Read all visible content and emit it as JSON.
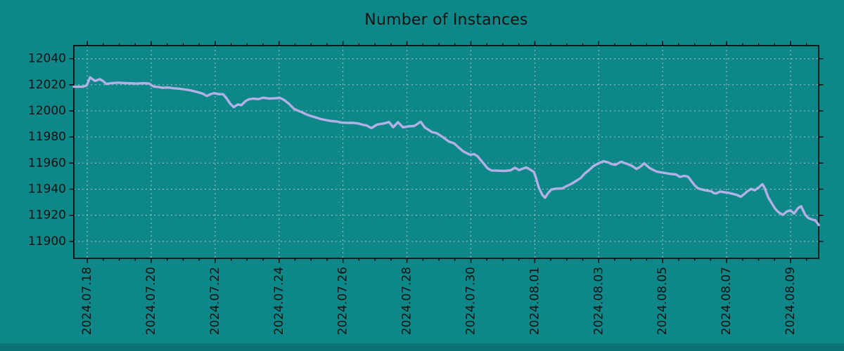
{
  "chart": {
    "title": "Number of Instances",
    "colors": {
      "background": "#0e8789",
      "bottom_strip": "#0b7173",
      "line": "#b3b0e6",
      "grid": "#cccccc",
      "text": "#111111",
      "frame": "#000000"
    }
  },
  "chart_data": {
    "type": "line",
    "title": "Number of Instances",
    "series_name": "instances",
    "x_unit": "days since 2024-07-18 00:00",
    "xlim_days": [
      -0.42,
      22.88
    ],
    "ylim": [
      11887,
      12050
    ],
    "grid": true,
    "legend": "none",
    "x_tick_days": [
      0,
      2,
      4,
      6,
      8,
      10,
      12,
      14,
      16,
      18,
      20,
      22
    ],
    "x_tick_labels": [
      "2024.07.18",
      "2024.07.20",
      "2024.07.22",
      "2024.07.24",
      "2024.07.26",
      "2024.07.28",
      "2024.07.30",
      "2024.08.01",
      "2024.08.03",
      "2024.08.05",
      "2024.08.07",
      "2024.08.09"
    ],
    "x_minor_tick_interval_days": 0.5,
    "y_ticks": [
      11900,
      11920,
      11940,
      11960,
      11980,
      12000,
      12020,
      12040
    ],
    "points": [
      [
        -0.42,
        12018.5
      ],
      [
        -0.13,
        12018.6
      ],
      [
        -0.02,
        12019.5
      ],
      [
        0.09,
        12025.7
      ],
      [
        0.18,
        12024.0
      ],
      [
        0.24,
        12023.0
      ],
      [
        0.4,
        12024.3
      ],
      [
        0.51,
        12022.5
      ],
      [
        0.59,
        12020.6
      ],
      [
        0.75,
        12021.3
      ],
      [
        0.97,
        12021.6
      ],
      [
        1.23,
        12021.2
      ],
      [
        1.52,
        12020.9
      ],
      [
        1.78,
        12021.2
      ],
      [
        1.94,
        12020.9
      ],
      [
        2.02,
        12019.5
      ],
      [
        2.09,
        12018.6
      ],
      [
        2.24,
        12018.2
      ],
      [
        2.35,
        12017.7
      ],
      [
        2.53,
        12017.9
      ],
      [
        2.68,
        12017.4
      ],
      [
        2.86,
        12017.0
      ],
      [
        3.06,
        12016.4
      ],
      [
        3.19,
        12015.9
      ],
      [
        3.3,
        12015.3
      ],
      [
        3.45,
        12014.4
      ],
      [
        3.61,
        12013.2
      ],
      [
        3.74,
        12011.4
      ],
      [
        3.85,
        12012.7
      ],
      [
        3.96,
        12013.6
      ],
      [
        4.09,
        12012.9
      ],
      [
        4.25,
        12012.7
      ],
      [
        4.36,
        12009.5
      ],
      [
        4.47,
        12005.5
      ],
      [
        4.58,
        12002.9
      ],
      [
        4.71,
        12004.9
      ],
      [
        4.82,
        12004.4
      ],
      [
        4.95,
        12007.5
      ],
      [
        5.06,
        12008.9
      ],
      [
        5.19,
        12009.4
      ],
      [
        5.35,
        12009.0
      ],
      [
        5.5,
        12010.1
      ],
      [
        5.68,
        12009.5
      ],
      [
        5.87,
        12009.6
      ],
      [
        6.03,
        12009.9
      ],
      [
        6.16,
        12008.3
      ],
      [
        6.31,
        12005.4
      ],
      [
        6.47,
        12001.5
      ],
      [
        6.6,
        12000.1
      ],
      [
        6.71,
        11999.0
      ],
      [
        6.86,
        11997.2
      ],
      [
        7.0,
        11996.1
      ],
      [
        7.17,
        11994.8
      ],
      [
        7.3,
        11993.8
      ],
      [
        7.46,
        11993.0
      ],
      [
        7.61,
        11992.3
      ],
      [
        7.79,
        11991.9
      ],
      [
        7.96,
        11991.0
      ],
      [
        8.14,
        11990.8
      ],
      [
        8.29,
        11990.9
      ],
      [
        8.47,
        11990.4
      ],
      [
        8.62,
        11989.3
      ],
      [
        8.73,
        11988.9
      ],
      [
        8.89,
        11986.8
      ],
      [
        9.06,
        11989.4
      ],
      [
        9.28,
        11990.4
      ],
      [
        9.44,
        11991.4
      ],
      [
        9.57,
        11987.5
      ],
      [
        9.72,
        11991.3
      ],
      [
        9.88,
        11987.4
      ],
      [
        10.05,
        11988.2
      ],
      [
        10.23,
        11988.4
      ],
      [
        10.43,
        11991.7
      ],
      [
        10.56,
        11987.3
      ],
      [
        10.78,
        11983.8
      ],
      [
        10.93,
        11982.9
      ],
      [
        11.11,
        11980.1
      ],
      [
        11.31,
        11976.5
      ],
      [
        11.48,
        11975.0
      ],
      [
        11.62,
        11971.9
      ],
      [
        11.77,
        11968.8
      ],
      [
        11.97,
        11966.4
      ],
      [
        12.1,
        11966.9
      ],
      [
        12.21,
        11965.2
      ],
      [
        12.41,
        11959.3
      ],
      [
        12.52,
        11956.0
      ],
      [
        12.65,
        11954.3
      ],
      [
        12.83,
        11954.2
      ],
      [
        13.02,
        11954.0
      ],
      [
        13.24,
        11954.4
      ],
      [
        13.38,
        11956.4
      ],
      [
        13.51,
        11954.6
      ],
      [
        13.73,
        11956.7
      ],
      [
        13.86,
        11954.9
      ],
      [
        13.97,
        11953.3
      ],
      [
        14.04,
        11948.5
      ],
      [
        14.12,
        11941.5
      ],
      [
        14.23,
        11935.8
      ],
      [
        14.32,
        11933.4
      ],
      [
        14.41,
        11936.8
      ],
      [
        14.52,
        11939.8
      ],
      [
        14.67,
        11940.4
      ],
      [
        14.85,
        11940.5
      ],
      [
        15.0,
        11942.4
      ],
      [
        15.16,
        11944.3
      ],
      [
        15.29,
        11946.3
      ],
      [
        15.44,
        11948.6
      ],
      [
        15.55,
        11951.7
      ],
      [
        15.71,
        11954.9
      ],
      [
        15.84,
        11957.8
      ],
      [
        16.0,
        11959.9
      ],
      [
        16.15,
        11961.4
      ],
      [
        16.28,
        11960.7
      ],
      [
        16.41,
        11959.2
      ],
      [
        16.52,
        11958.7
      ],
      [
        16.7,
        11961.0
      ],
      [
        16.87,
        11959.5
      ],
      [
        17.03,
        11958.0
      ],
      [
        17.18,
        11955.5
      ],
      [
        17.31,
        11957.3
      ],
      [
        17.42,
        11959.9
      ],
      [
        17.6,
        11956.0
      ],
      [
        17.82,
        11953.4
      ],
      [
        18.04,
        11952.5
      ],
      [
        18.26,
        11951.6
      ],
      [
        18.42,
        11951.3
      ],
      [
        18.53,
        11949.4
      ],
      [
        18.68,
        11950.2
      ],
      [
        18.79,
        11949.6
      ],
      [
        18.88,
        11946.8
      ],
      [
        18.99,
        11943.2
      ],
      [
        19.1,
        11940.7
      ],
      [
        19.21,
        11939.9
      ],
      [
        19.36,
        11939.0
      ],
      [
        19.52,
        11938.4
      ],
      [
        19.6,
        11937.0
      ],
      [
        19.67,
        11936.7
      ],
      [
        19.8,
        11938.2
      ],
      [
        19.96,
        11937.5
      ],
      [
        20.04,
        11937.3
      ],
      [
        20.2,
        11936.4
      ],
      [
        20.33,
        11935.5
      ],
      [
        20.44,
        11934.2
      ],
      [
        20.53,
        11935.8
      ],
      [
        20.64,
        11938.2
      ],
      [
        20.77,
        11940.2
      ],
      [
        20.88,
        11939.2
      ],
      [
        21.01,
        11941.4
      ],
      [
        21.12,
        11943.8
      ],
      [
        21.19,
        11941.0
      ],
      [
        21.3,
        11933.8
      ],
      [
        21.41,
        11929.3
      ],
      [
        21.52,
        11924.9
      ],
      [
        21.63,
        11922.2
      ],
      [
        21.76,
        11920.3
      ],
      [
        21.89,
        11923.0
      ],
      [
        22.0,
        11923.8
      ],
      [
        22.11,
        11921.3
      ],
      [
        22.24,
        11925.6
      ],
      [
        22.33,
        11926.9
      ],
      [
        22.46,
        11920.4
      ],
      [
        22.55,
        11918.0
      ],
      [
        22.66,
        11916.8
      ],
      [
        22.77,
        11916.2
      ],
      [
        22.84,
        11914.0
      ],
      [
        22.88,
        11912.5
      ]
    ]
  }
}
